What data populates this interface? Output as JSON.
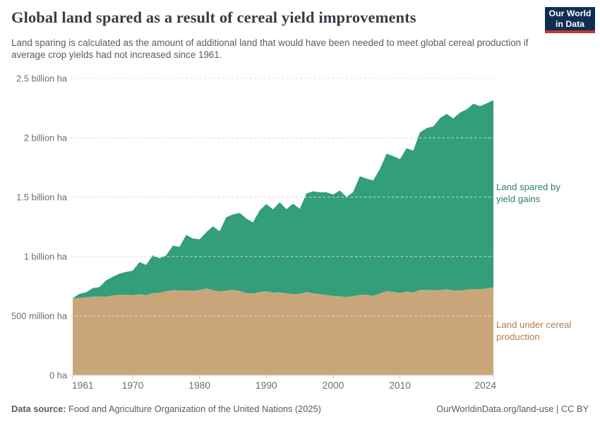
{
  "header": {
    "title": "Global land spared as a result of cereal yield improvements",
    "subtitle": "Land sparing is calculated as the amount of additional land that would have been needed to meet global cereal production if average crop yields had not increased since 1961.",
    "logo_line1": "Our World",
    "logo_line2": "in Data"
  },
  "annotations": {
    "spared_line1": "Land spared by",
    "spared_line2": "yield gains",
    "production_line1": "Land under cereal",
    "production_line2": "production"
  },
  "footer": {
    "source_prefix": "Data source:",
    "source_text": " Food and Agriculture Organization of the United Nations (2025)",
    "link": "OurWorldinData.org/land-use",
    "separator": " | ",
    "license": "CC BY"
  },
  "chart_data": {
    "type": "area",
    "stacked": true,
    "title": "Global land spared as a result of cereal yield improvements",
    "unit": "million hectares",
    "grid": "dashed",
    "legend_position": "right-edge-labels",
    "ylim": [
      0,
      2500
    ],
    "xlim": [
      1961,
      2024
    ],
    "y_ticks": [
      {
        "value": 0,
        "label": "0 ha"
      },
      {
        "value": 500,
        "label": "500 million ha"
      },
      {
        "value": 1000,
        "label": "1 billion ha"
      },
      {
        "value": 1500,
        "label": "1.5 billion ha"
      },
      {
        "value": 2000,
        "label": "2 billion ha"
      },
      {
        "value": 2500,
        "label": "2.5 billion ha"
      }
    ],
    "x_ticks": [
      {
        "value": 1961,
        "label": "1961"
      },
      {
        "value": 1970,
        "label": "1970"
      },
      {
        "value": 1980,
        "label": "1980"
      },
      {
        "value": 1990,
        "label": "1990"
      },
      {
        "value": 2000,
        "label": "2000"
      },
      {
        "value": 2010,
        "label": "2010"
      },
      {
        "value": 2024,
        "label": "2024"
      }
    ],
    "x": [
      1961,
      1962,
      1963,
      1964,
      1965,
      1966,
      1967,
      1968,
      1969,
      1970,
      1971,
      1972,
      1973,
      1974,
      1975,
      1976,
      1977,
      1978,
      1979,
      1980,
      1981,
      1982,
      1983,
      1984,
      1985,
      1986,
      1987,
      1988,
      1989,
      1990,
      1991,
      1992,
      1993,
      1994,
      1995,
      1996,
      1997,
      1998,
      1999,
      2000,
      2001,
      2002,
      2003,
      2004,
      2005,
      2006,
      2007,
      2008,
      2009,
      2010,
      2011,
      2012,
      2013,
      2014,
      2015,
      2016,
      2017,
      2018,
      2019,
      2020,
      2021,
      2022,
      2023,
      2024
    ],
    "series": [
      {
        "name": "Land under cereal production",
        "color": "#c9a67a",
        "label_color": "#b07e4f",
        "values": [
          648,
          651,
          656,
          662,
          664,
          662,
          672,
          676,
          679,
          675,
          683,
          674,
          692,
          695,
          708,
          717,
          714,
          713,
          712,
          717,
          732,
          716,
          707,
          712,
          720,
          710,
          692,
          688,
          702,
          708,
          696,
          699,
          690,
          684,
          685,
          701,
          690,
          684,
          675,
          668,
          664,
          659,
          666,
          676,
          679,
          669,
          689,
          708,
          703,
          693,
          705,
          698,
          719,
          719,
          717,
          718,
          724,
          715,
          714,
          720,
          726,
          725,
          732,
          740
        ]
      },
      {
        "name": "Land spared by yield gains",
        "color": "#329e7b",
        "label_color": "#2c8465",
        "values": [
          0,
          35,
          42,
          72,
          79,
          137,
          157,
          180,
          191,
          206,
          270,
          255,
          319,
          291,
          302,
          374,
          368,
          469,
          440,
          428,
          473,
          538,
          506,
          619,
          634,
          657,
          628,
          600,
          686,
          734,
          701,
          758,
          709,
          761,
          717,
          830,
          859,
          857,
          866,
          854,
          892,
          843,
          877,
          1000,
          977,
          972,
          1048,
          1158,
          1143,
          1128,
          1207,
          1195,
          1326,
          1363,
          1378,
          1447,
          1478,
          1448,
          1499,
          1520,
          1561,
          1541,
          1558,
          1577
        ]
      }
    ]
  }
}
